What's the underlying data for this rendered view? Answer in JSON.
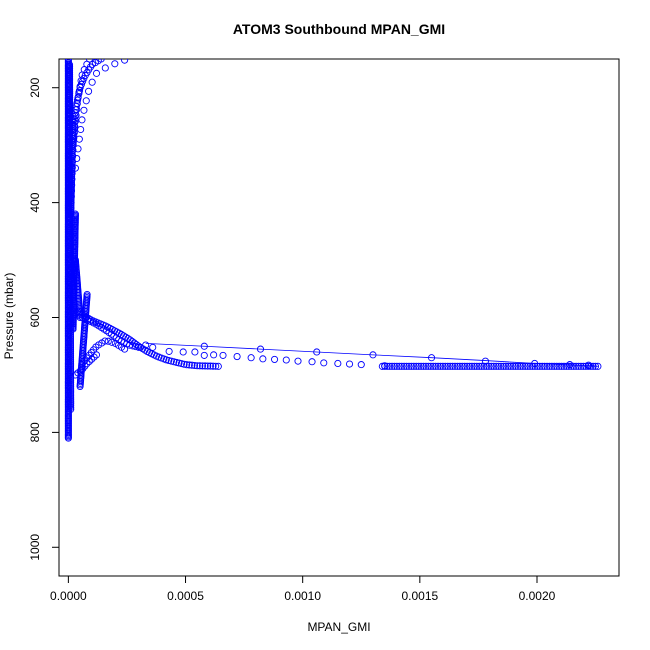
{
  "chart_data": {
    "type": "scatter",
    "title": "ATOM3 Southbound MPAN_GMI",
    "xlabel": "MPAN_GMI",
    "ylabel": "Pressure (mbar)",
    "xlim": [
      -4e-05,
      0.00235
    ],
    "ylim": [
      1050,
      150
    ],
    "y_reversed": true,
    "grid": false,
    "legend": "none",
    "color": "#0000ff",
    "marker": "open-circle",
    "x_ticks": [
      {
        "value": 0.0,
        "label": "0.0000"
      },
      {
        "value": 0.0005,
        "label": "0.0005"
      },
      {
        "value": 0.001,
        "label": "0.0010"
      },
      {
        "value": 0.0015,
        "label": "0.0015"
      },
      {
        "value": 0.002,
        "label": "0.0020"
      }
    ],
    "y_ticks": [
      {
        "value": 200,
        "label": "200"
      },
      {
        "value": 400,
        "label": "400"
      },
      {
        "value": 600,
        "label": "600"
      },
      {
        "value": 800,
        "label": "800"
      },
      {
        "value": 1000,
        "label": "1000"
      }
    ],
    "series": [
      {
        "segments": [
          {
            "from": [
              0.0,
              810
            ],
            "to": [
              0.0,
              150
            ],
            "count": 300
          },
          {
            "from": [
              1e-05,
              760
            ],
            "to": [
              5e-06,
              160
            ],
            "count": 180
          },
          {
            "from": [
              2e-05,
              620
            ],
            "to": [
              3e-05,
              420
            ],
            "count": 90
          },
          {
            "from": [
              5e-05,
              720
            ],
            "to": [
              8e-05,
              560
            ],
            "count": 60
          },
          {
            "from": [
              3e-05,
              500
            ],
            "to": [
              5e-05,
              600
            ],
            "count": 40
          },
          {
            "from": [
              1e-05,
              420
            ],
            "to": [
              2e-05,
              250
            ],
            "count": 50
          }
        ],
        "curves": [
          {
            "points": [
              [
                2e-05,
                300
              ],
              [
                3e-05,
                240
              ],
              [
                5e-05,
                200
              ],
              [
                7e-05,
                180
              ],
              [
                0.0001,
                160
              ],
              [
                0.00014,
                150
              ]
            ],
            "count": 30
          },
          {
            "points": [
              [
                1e-05,
                420
              ],
              [
                2e-05,
                300
              ],
              [
                4e-05,
                220
              ],
              [
                6e-05,
                175
              ],
              [
                9e-05,
                150
              ]
            ],
            "count": 28
          },
          {
            "points": [
              [
                3e-05,
                340
              ],
              [
                6e-05,
                250
              ],
              [
                9e-05,
                200
              ],
              [
                0.00012,
                175
              ],
              [
                0.00016,
                165
              ],
              [
                0.0002,
                158
              ],
              [
                0.00024,
                152
              ]
            ],
            "count": 14
          },
          {
            "points": [
              [
                4e-05,
                590
              ],
              [
                0.0001,
                605
              ],
              [
                0.00016,
                615
              ],
              [
                0.00022,
                628
              ],
              [
                0.00026,
                638
              ],
              [
                0.0003,
                650
              ],
              [
                0.00034,
                660
              ],
              [
                0.00038,
                668
              ],
              [
                0.00042,
                674
              ],
              [
                0.00046,
                678
              ],
              [
                0.0005,
                682
              ],
              [
                0.00055,
                684
              ],
              [
                0.00064,
                685
              ]
            ],
            "count": 60
          },
          {
            "points": [
              [
                6e-05,
                600
              ],
              [
                0.00012,
                612
              ],
              [
                0.00017,
                625
              ],
              [
                0.00022,
                640
              ],
              [
                0.00026,
                648
              ],
              [
                0.0003,
                652
              ]
            ],
            "count": 22
          },
          {
            "points": [
              [
                6e-05,
                680
              ],
              [
                0.00012,
                650
              ],
              [
                0.00016,
                640
              ],
              [
                0.0002,
                645
              ],
              [
                0.00024,
                655
              ]
            ],
            "count": 16
          },
          {
            "points": [
              [
                3e-05,
                700
              ],
              [
                6e-05,
                690
              ],
              [
                8e-05,
                680
              ],
              [
                0.00012,
                665
              ]
            ],
            "count": 10
          }
        ],
        "points": [
          [
            0.00033,
            648
          ],
          [
            0.00036,
            652
          ],
          [
            0.00043,
            659
          ],
          [
            0.00049,
            660
          ],
          [
            0.00054,
            660
          ],
          [
            0.00058,
            650
          ],
          [
            0.00058,
            666
          ],
          [
            0.00062,
            665
          ],
          [
            0.00066,
            666
          ],
          [
            0.00072,
            668
          ],
          [
            0.00078,
            670
          ],
          [
            0.00083,
            672
          ],
          [
            0.00088,
            673
          ],
          [
            0.00093,
            674
          ],
          [
            0.00098,
            676
          ],
          [
            0.00104,
            677
          ],
          [
            0.00109,
            679
          ],
          [
            0.00115,
            680
          ],
          [
            0.0012,
            681
          ],
          [
            0.00125,
            682
          ],
          [
            0.0013,
            665
          ],
          [
            0.00135,
            684
          ],
          [
            0.00082,
            655
          ],
          [
            0.00106,
            660
          ],
          [
            0.00155,
            670
          ],
          [
            0.00178,
            676
          ],
          [
            0.00199,
            680
          ],
          [
            0.00214,
            682
          ],
          [
            0.00222,
            683
          ]
        ],
        "tail_segment": {
          "from": [
            0.00134,
            685
          ],
          "to": [
            0.00226,
            685
          ],
          "count": 90
        },
        "trace_line": [
          [
            0.00033,
            645
          ],
          [
            0.00058,
            650
          ],
          [
            0.00082,
            655
          ],
          [
            0.00106,
            660
          ],
          [
            0.0013,
            665
          ],
          [
            0.00155,
            670
          ],
          [
            0.00178,
            675
          ],
          [
            0.00199,
            680
          ],
          [
            0.00222,
            684
          ],
          [
            0.00226,
            685
          ]
        ]
      }
    ]
  }
}
